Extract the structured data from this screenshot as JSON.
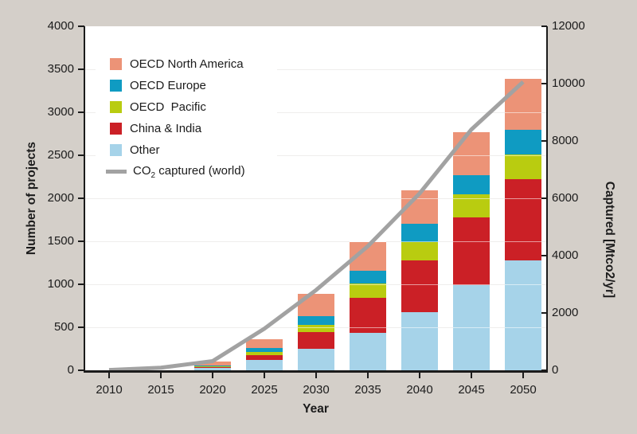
{
  "chart_data": {
    "type": "bar",
    "subtype": "stacked-bars-with-line-overlay",
    "title": "",
    "xlabel": "Year",
    "ylabel": "Number of projects",
    "y2label": "Captured [Mtco2/yr]",
    "ylim": [
      0,
      4000
    ],
    "y2lim": [
      0,
      12000
    ],
    "grid": "horizontal, every 500 projects",
    "legend_position": "upper-left inside plot, white box",
    "categories": [
      "2010",
      "2015",
      "2020",
      "2025",
      "2030",
      "2035",
      "2040",
      "2045",
      "2050"
    ],
    "series": [
      {
        "name": "Other",
        "color": "#A6D3E9",
        "values": [
          0,
          0,
          35,
          120,
          250,
          435,
          675,
          995,
          1280
        ]
      },
      {
        "name": "China & India",
        "color": "#CB2026",
        "values": [
          0,
          0,
          5,
          55,
          195,
          410,
          605,
          780,
          945
        ]
      },
      {
        "name": "OECD Pacific",
        "color": "#B9CC10",
        "values": [
          0,
          0,
          5,
          35,
          85,
          160,
          215,
          270,
          280
        ]
      },
      {
        "name": "OECD Europe",
        "color": "#0F9BC2",
        "values": [
          0,
          0,
          15,
          45,
          100,
          150,
          205,
          225,
          295
        ]
      },
      {
        "name": "OECD North America",
        "color": "#EC9377",
        "values": [
          0,
          0,
          40,
          110,
          260,
          335,
          390,
          500,
          585
        ]
      }
    ],
    "line_series": {
      "name": "CO2 captured (world)",
      "axis": "right",
      "color": "#A2A2A2",
      "values": [
        10,
        90,
        320,
        1450,
        2800,
        4330,
        6170,
        8400,
        10060
      ]
    },
    "left_ticks": [
      "4000",
      "3500",
      "3000",
      "2500",
      "2000",
      "1500",
      "1000",
      "500",
      "0"
    ],
    "right_ticks": [
      "12000",
      "10000",
      "8000",
      "6000",
      "4000",
      "2000",
      "0"
    ],
    "bottom_ticks": [
      "2010",
      "2015",
      "2020",
      "2025",
      "2030",
      "2035",
      "2040",
      "2045",
      "2050"
    ]
  },
  "axis_titles": {
    "left": "Number of projects",
    "right": "Captured [Mtco2/yr]",
    "bottom": "Year"
  },
  "legend": {
    "items": [
      {
        "kind": "box",
        "color": "#EC9377",
        "label": "OECD North America"
      },
      {
        "kind": "box",
        "color": "#0F9BC2",
        "label": "OECD Europe"
      },
      {
        "kind": "box",
        "color": "#B9CC10",
        "label": "OECD  Pacific"
      },
      {
        "kind": "box",
        "color": "#CB2026",
        "label": "China & India"
      },
      {
        "kind": "box",
        "color": "#A6D3E9",
        "label": "Other"
      },
      {
        "kind": "line",
        "color": "#A2A2A2",
        "label_pre": "CO",
        "label_sub": "2",
        "label_post": " captured (world)"
      }
    ]
  },
  "colors": {
    "background": "#D4CFC9",
    "plot_background": "#FFFFFF",
    "axis": "#1B1B1B",
    "gridline": "#DBD8D4"
  }
}
